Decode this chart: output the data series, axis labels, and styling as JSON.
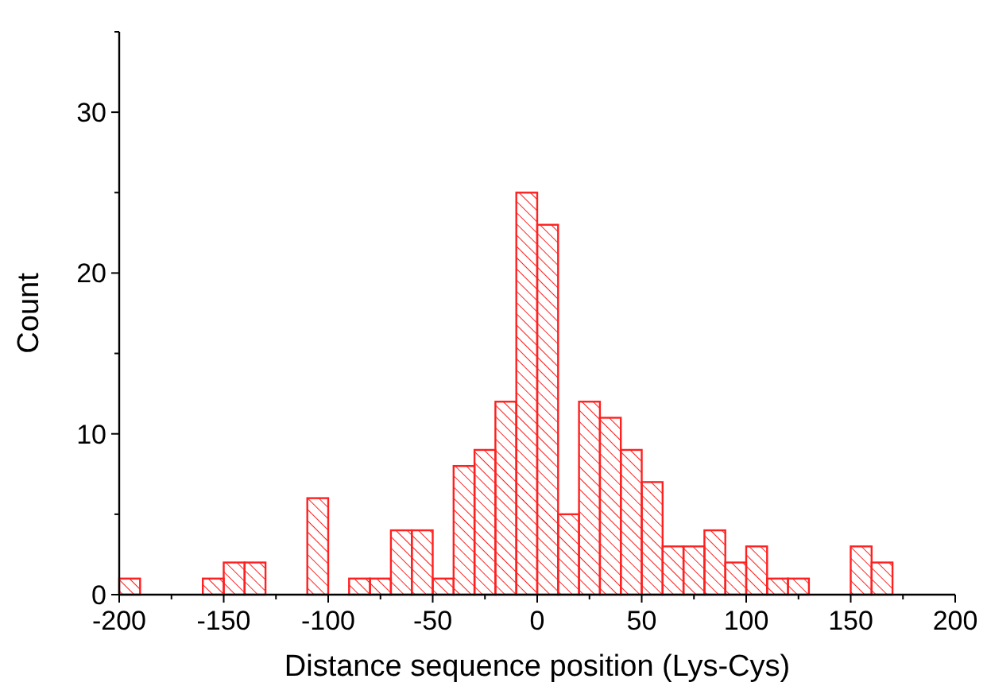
{
  "chart_data": {
    "type": "histogram",
    "xlabel": "Distance sequence position (Lys-Cys)",
    "ylabel": "Count",
    "color": "#ff2020",
    "bins": [
      -200,
      -190,
      -180,
      -170,
      -160,
      -150,
      -140,
      -130,
      -120,
      -110,
      -100,
      -90,
      -80,
      -70,
      -60,
      -50,
      -40,
      -30,
      -20,
      -10,
      0,
      10,
      20,
      30,
      40,
      50,
      60,
      70,
      80,
      90,
      100,
      110,
      120,
      130,
      140,
      150,
      160,
      170
    ],
    "values": [
      1,
      0,
      0,
      0,
      1,
      2,
      2,
      0,
      0,
      6,
      0,
      1,
      1,
      4,
      4,
      1,
      8,
      9,
      12,
      25,
      23,
      5,
      12,
      11,
      9,
      7,
      3,
      3,
      4,
      2,
      3,
      1,
      1,
      0,
      0,
      3,
      2
    ],
    "xlim": [
      -200,
      200
    ],
    "xticks": [
      -200,
      {
        "value": -175,
        "label": null
      },
      -150,
      {
        "value": -125,
        "label": null
      },
      -100,
      {
        "value": -75,
        "label": null
      },
      -50,
      {
        "value": -25,
        "label": null
      },
      0,
      {
        "value": 25,
        "label": null
      },
      50,
      {
        "value": 75,
        "label": null
      },
      100,
      {
        "value": 125,
        "label": null
      },
      150,
      {
        "value": 175,
        "label": null
      },
      200
    ],
    "ylim": [
      0,
      35
    ],
    "yticks": [
      0,
      {
        "value": 5,
        "label": null
      },
      10,
      {
        "value": 15,
        "label": null
      },
      20,
      {
        "value": 25,
        "label": null
      },
      30,
      {
        "value": 35,
        "label": null
      }
    ],
    "grid": false
  }
}
